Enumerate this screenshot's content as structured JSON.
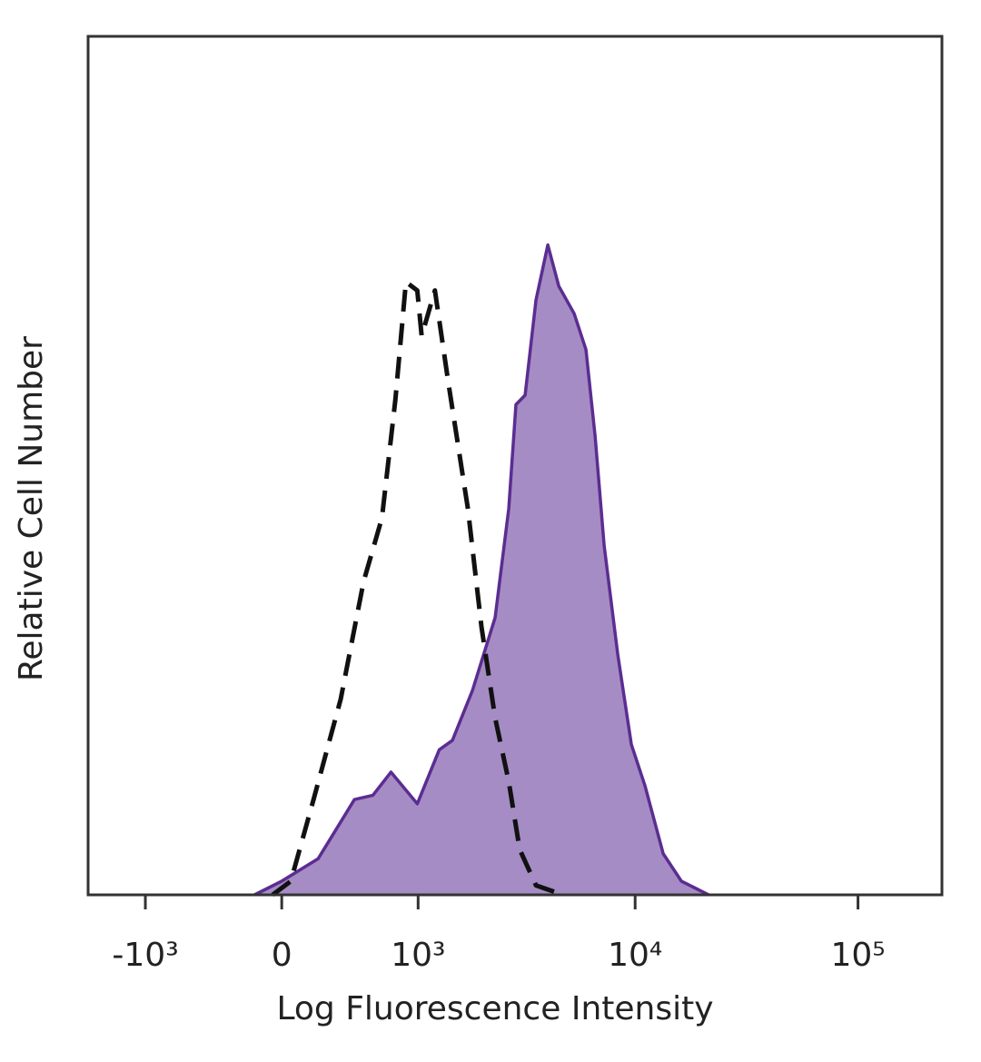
{
  "chart_data": {
    "type": "line",
    "xlabel": "Log Fluorescence Intensity",
    "ylabel": "Relative Cell Number",
    "xscale": "biexponential",
    "xlim": [
      -1886,
      238000
    ],
    "xticks": [
      {
        "value": -1000,
        "label": "-10³"
      },
      0,
      {
        "value": 1000,
        "label": "10³"
      },
      {
        "value": 10000,
        "label": "10⁴"
      },
      {
        "value": 100000,
        "label": "10⁵"
      }
    ],
    "ylim": [
      0,
      100
    ],
    "series": [
      {
        "color": "#5b2d91",
        "fill": "#a68cc4",
        "dashed": false,
        "x": [
          -148,
          0,
          200,
          428,
          565,
          719,
          990,
          1272,
          1472,
          1827,
          2328,
          2687,
          2899,
          3189,
          3575,
          4044,
          4534,
          5317,
          6012,
          6607,
          7254,
          8356,
          9620,
          11071,
          13359,
          16120,
          21372
        ],
        "values": [
          0,
          1.6,
          4.2,
          11.1,
          11.6,
          14.3,
          10.6,
          16.9,
          18.0,
          23.8,
          32.3,
          45.0,
          57.1,
          58.2,
          69.3,
          75.7,
          70.9,
          67.7,
          63.5,
          53.4,
          40.7,
          28.0,
          17.5,
          12.7,
          4.8,
          1.6,
          0
        ]
      },
      {
        "color": "#111111",
        "fill": null,
        "dashed": true,
        "x": [
          -49,
          49,
          174,
          337,
          494,
          640,
          761,
          866,
          990,
          1042,
          1211,
          1404,
          1741,
          2014,
          2328,
          2687,
          3012,
          3575,
          4755
        ],
        "values": [
          0,
          1.6,
          11.1,
          22.8,
          36.5,
          43.9,
          57.7,
          71.4,
          70.4,
          65.1,
          70.4,
          59.8,
          45.0,
          31.2,
          20.6,
          13.2,
          5.3,
          1.1,
          0
        ]
      }
    ]
  }
}
